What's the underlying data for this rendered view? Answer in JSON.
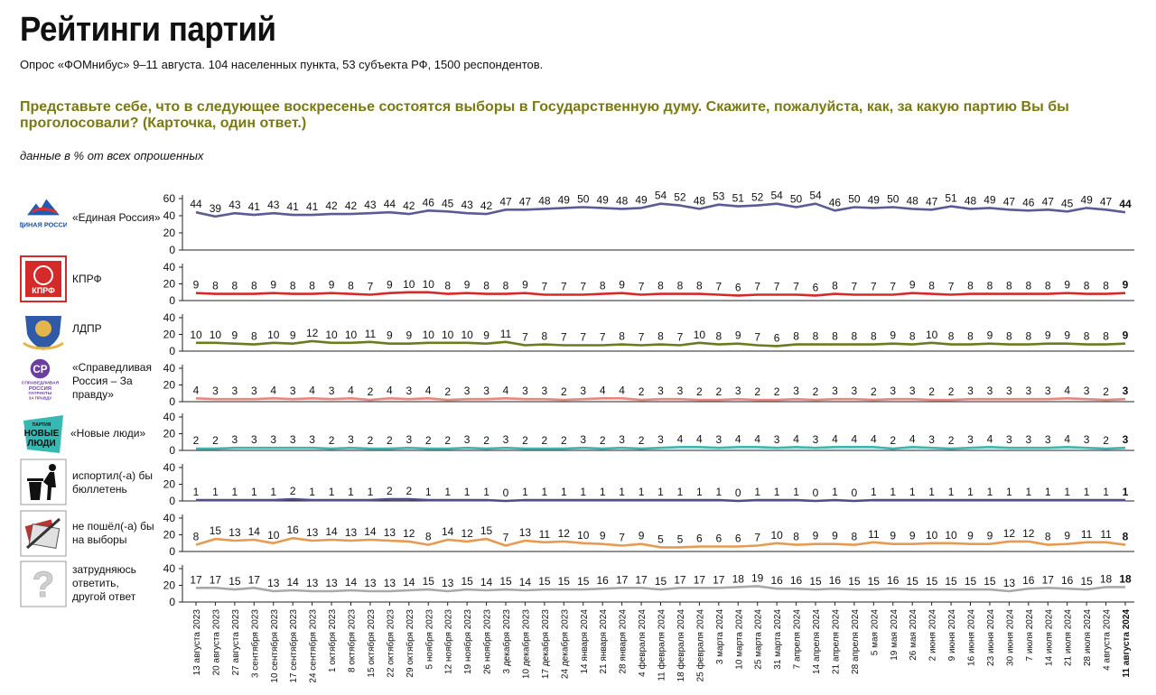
{
  "header": {
    "title": "Рейтинги партий",
    "subtitle": "Опрос «ФОМнибус» 9–11 августа. 104 населенных пункта, 53 субъекта РФ, 1500 респондентов.",
    "question": "Представьте себе, что в следующее воскресенье состоятся выборы в Государственную думу. Скажите, пожалуйста, как, за какую партию Вы бы проголосовали? (Карточка, один ответ.)",
    "units_note": "данные в % от всех опрошенных"
  },
  "logos": {
    "er": "ЕДИНАЯ РОССИЯ",
    "kprf": "КПРФ",
    "sr1": "СПРАВЕДЛИВАЯ",
    "sr2": "РОССИЯ",
    "sr3": "ПАТРИОТЫ",
    "sr4": "ЗА ПРАВДУ",
    "nl1": "ПАРТИЯ",
    "nl2": "НОВЫЕ",
    "nl3": "ЛЮДИ"
  },
  "chart_data": {
    "type": "line",
    "categories": [
      "13 августа 2023",
      "20 августа 2023",
      "27 августа 2023",
      "3 сентября 2023",
      "10 сентября 2023",
      "17 сентября 2023",
      "24 сентября 2023",
      "1 октября 2023",
      "8 октября 2023",
      "15 октября 2023",
      "22 октября 2023",
      "29 октября 2023",
      "5 ноября 2023",
      "12 ноября 2023",
      "19 ноября 2023",
      "26 ноября 2023",
      "3 декабря 2023",
      "10 декабря 2023",
      "17 декабря 2023",
      "24 декабря 2023",
      "14 января 2024",
      "21 января 2024",
      "28 января 2024",
      "4 февраля 2024",
      "11 февраля 2024",
      "18 февраля 2024",
      "25 февраля 2024",
      "3 марта 2024",
      "10 марта 2024",
      "25 марта 2024",
      "31 марта 2024",
      "7 апреля 2024",
      "14 апреля 2024",
      "21 апреля 2024",
      "28 апреля 2024",
      "5 мая 2024",
      "19 мая 2024",
      "26 мая 2024",
      "2 июня 2024",
      "9 июня 2024",
      "16 июня 2024",
      "23 июня 2024",
      "30 июня 2024",
      "7 июля 2024",
      "14 июля 2024",
      "21 июля 2024",
      "28 июля 2024",
      "4 августа 2024",
      "11 августа 2024"
    ],
    "series": [
      {
        "name": "«Единая Россия»",
        "color": "#5b5b95",
        "yticks": [
          0,
          20,
          40,
          60
        ],
        "ymax": 60,
        "values": [
          44,
          39,
          43,
          41,
          43,
          41,
          41,
          42,
          42,
          43,
          44,
          42,
          46,
          45,
          43,
          42,
          47,
          47,
          48,
          49,
          50,
          49,
          48,
          49,
          54,
          52,
          48,
          53,
          51,
          52,
          54,
          50,
          54,
          46,
          50,
          49,
          50,
          48,
          47,
          51,
          48,
          49,
          47,
          46,
          47,
          45,
          49,
          47,
          44
        ]
      },
      {
        "name": "КПРФ",
        "color": "#d42a2a",
        "yticks": [
          0,
          20,
          40
        ],
        "ymax": 40,
        "values": [
          9,
          8,
          8,
          8,
          9,
          8,
          8,
          9,
          8,
          7,
          9,
          10,
          10,
          8,
          9,
          8,
          8,
          9,
          7,
          7,
          7,
          8,
          9,
          7,
          8,
          8,
          8,
          7,
          6,
          7,
          7,
          7,
          6,
          8,
          7,
          7,
          7,
          9,
          8,
          7,
          8,
          8,
          8,
          8,
          8,
          9,
          8,
          8,
          9
        ]
      },
      {
        "name": "ЛДПР",
        "color": "#6e7a1e",
        "yticks": [
          0,
          20,
          40
        ],
        "ymax": 40,
        "values": [
          10,
          10,
          9,
          8,
          10,
          9,
          12,
          10,
          10,
          11,
          9,
          9,
          10,
          10,
          10,
          9,
          11,
          7,
          8,
          7,
          7,
          7,
          8,
          7,
          8,
          7,
          10,
          8,
          9,
          7,
          6,
          8,
          8,
          8,
          8,
          8,
          9,
          8,
          10,
          8,
          8,
          9,
          8,
          8,
          9,
          9,
          8,
          8,
          9
        ]
      },
      {
        "name": "«Справедливая Россия – За правду»",
        "color": "#e8877f",
        "yticks": [
          0,
          20,
          40
        ],
        "ymax": 40,
        "values": [
          4,
          3,
          3,
          3,
          4,
          3,
          4,
          3,
          4,
          2,
          4,
          3,
          4,
          2,
          3,
          3,
          4,
          3,
          3,
          2,
          3,
          4,
          4,
          2,
          3,
          3,
          2,
          2,
          3,
          2,
          2,
          3,
          2,
          3,
          3,
          2,
          3,
          3,
          2,
          2,
          3,
          3,
          3,
          3,
          3,
          4,
          3,
          2,
          3
        ]
      },
      {
        "name": "«Новые люди»",
        "color": "#3bb7b0",
        "yticks": [
          0,
          20,
          40
        ],
        "ymax": 40,
        "values": [
          2,
          2,
          3,
          3,
          3,
          3,
          3,
          2,
          3,
          2,
          2,
          3,
          2,
          2,
          3,
          2,
          3,
          2,
          2,
          2,
          3,
          2,
          3,
          2,
          3,
          4,
          4,
          3,
          4,
          4,
          3,
          4,
          3,
          4,
          4,
          4,
          2,
          4,
          3,
          2,
          3,
          4,
          3,
          3,
          3,
          4,
          3,
          2,
          3
        ]
      },
      {
        "name": "испортил(-а) бы бюллетень",
        "color": "#4e4e8a",
        "yticks": [
          0,
          20,
          40
        ],
        "ymax": 40,
        "values": [
          1,
          1,
          1,
          1,
          1,
          2,
          1,
          1,
          1,
          1,
          2,
          2,
          1,
          1,
          1,
          1,
          0,
          1,
          1,
          1,
          1,
          1,
          1,
          1,
          1,
          1,
          1,
          1,
          0,
          1,
          1,
          1,
          0,
          1,
          0,
          1,
          1,
          1,
          1,
          1,
          1,
          1,
          1,
          1,
          1,
          1,
          1,
          1,
          1
        ]
      },
      {
        "name": "не пошёл(-а) бы на выборы",
        "color": "#e69a52",
        "yticks": [
          0,
          20,
          40
        ],
        "ymax": 40,
        "values": [
          8,
          15,
          13,
          14,
          10,
          16,
          13,
          14,
          13,
          14,
          13,
          12,
          8,
          14,
          12,
          15,
          7,
          13,
          11,
          12,
          10,
          9,
          7,
          9,
          5,
          5,
          6,
          6,
          6,
          7,
          10,
          8,
          9,
          9,
          8,
          11,
          9,
          9,
          10,
          10,
          9,
          9,
          12,
          12,
          8,
          9,
          11,
          11,
          8
        ]
      },
      {
        "name": "затрудняюсь ответить, другой ответ",
        "color": "#a9a9a9",
        "yticks": [
          0,
          20,
          40
        ],
        "ymax": 40,
        "values": [
          17,
          17,
          15,
          17,
          13,
          14,
          13,
          13,
          14,
          13,
          13,
          14,
          15,
          13,
          15,
          14,
          15,
          14,
          15,
          15,
          15,
          16,
          17,
          17,
          15,
          17,
          17,
          17,
          18,
          19,
          16,
          16,
          15,
          16,
          15,
          15,
          16,
          15,
          15,
          15,
          15,
          15,
          13,
          16,
          17,
          16,
          15,
          18,
          18
        ]
      }
    ]
  }
}
